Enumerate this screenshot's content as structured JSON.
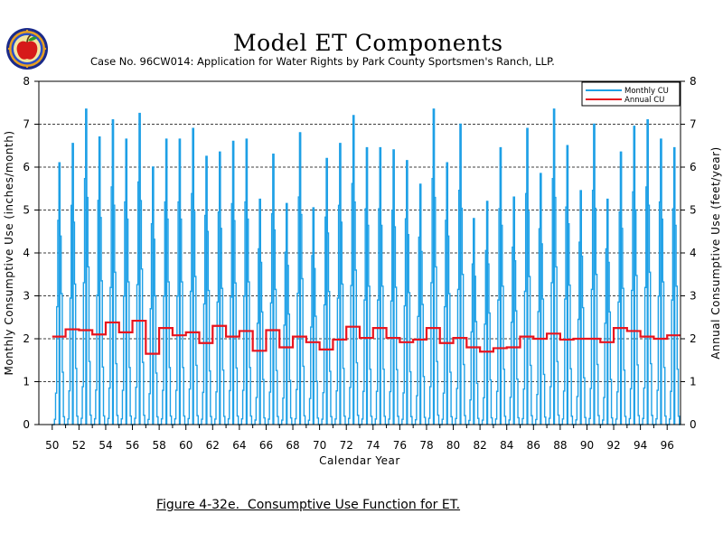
{
  "header": {
    "title": "Model ET Components",
    "subtitle": "Case No. 96CW014: Application for Water Rights by Park County Sportsmen's Ranch, LLP.",
    "caption": "Figure 4-32e.  Consumptive Use Function for ET."
  },
  "colors": {
    "monthly": "#1ea0e6",
    "annual": "#e8141e",
    "grid": "#000000"
  },
  "chart_data": {
    "type": "line",
    "xlabel": "Calendar Year",
    "ylabel_left": "Monthly Consumptive Use (inches/month)",
    "ylabel_right": "Annual Consumptive Use (feet/year)",
    "ylim": [
      0,
      8
    ],
    "xlim": [
      1949,
      1997
    ],
    "yticks": [
      "0",
      "1",
      "2",
      "3",
      "4",
      "5",
      "6",
      "7",
      "8"
    ],
    "xticks": [
      "50",
      "52",
      "54",
      "56",
      "58",
      "60",
      "62",
      "64",
      "66",
      "68",
      "70",
      "72",
      "74",
      "76",
      "78",
      "80",
      "82",
      "84",
      "86",
      "88",
      "90",
      "92",
      "94",
      "96"
    ],
    "grid": "horizontal dashed",
    "legend_position": "top-right",
    "series": [
      {
        "name": "Monthly CU",
        "kind": "monthly_peaks",
        "years": [
          1950,
          1951,
          1952,
          1953,
          1954,
          1955,
          1956,
          1957,
          1958,
          1959,
          1960,
          1961,
          1962,
          1963,
          1964,
          1965,
          1966,
          1967,
          1968,
          1969,
          1970,
          1971,
          1972,
          1973,
          1974,
          1975,
          1976,
          1977,
          1978,
          1979,
          1980,
          1981,
          1982,
          1983,
          1984,
          1985,
          1986,
          1987,
          1988,
          1989,
          1990,
          1991,
          1992,
          1993,
          1994,
          1995,
          1996
        ],
        "peak_values": [
          6.1,
          6.55,
          7.35,
          6.7,
          7.1,
          6.65,
          7.25,
          6.0,
          6.65,
          6.65,
          6.9,
          6.25,
          6.35,
          6.6,
          6.65,
          5.25,
          6.3,
          5.15,
          6.8,
          5.05,
          6.2,
          6.55,
          7.2,
          6.45,
          6.45,
          6.4,
          6.15,
          5.6,
          7.35,
          6.1,
          7.0,
          4.8,
          5.2,
          6.45,
          5.3,
          6.9,
          5.85,
          7.35,
          6.5,
          5.45,
          7.0,
          5.25,
          6.35,
          6.95,
          7.1,
          6.65,
          6.45
        ]
      },
      {
        "name": "Annual CU",
        "kind": "annual_step",
        "years": [
          1950,
          1951,
          1952,
          1953,
          1954,
          1955,
          1956,
          1957,
          1958,
          1959,
          1960,
          1961,
          1962,
          1963,
          1964,
          1965,
          1966,
          1967,
          1968,
          1969,
          1970,
          1971,
          1972,
          1973,
          1974,
          1975,
          1976,
          1977,
          1978,
          1979,
          1980,
          1981,
          1982,
          1983,
          1984,
          1985,
          1986,
          1987,
          1988,
          1989,
          1990,
          1991,
          1992,
          1993,
          1994,
          1995,
          1996
        ],
        "values": [
          2.05,
          2.22,
          2.2,
          2.1,
          2.38,
          2.15,
          2.42,
          1.65,
          2.25,
          2.08,
          2.15,
          1.9,
          2.3,
          2.05,
          2.18,
          1.72,
          2.2,
          1.8,
          2.05,
          1.92,
          1.75,
          1.98,
          2.28,
          2.02,
          2.25,
          2.02,
          1.92,
          1.98,
          2.25,
          1.9,
          2.02,
          1.8,
          1.7,
          1.78,
          1.8,
          2.05,
          2.0,
          2.12,
          1.98,
          2.0,
          2.0,
          1.92,
          2.25,
          2.18,
          2.05,
          2.0,
          2.08
        ]
      }
    ]
  }
}
